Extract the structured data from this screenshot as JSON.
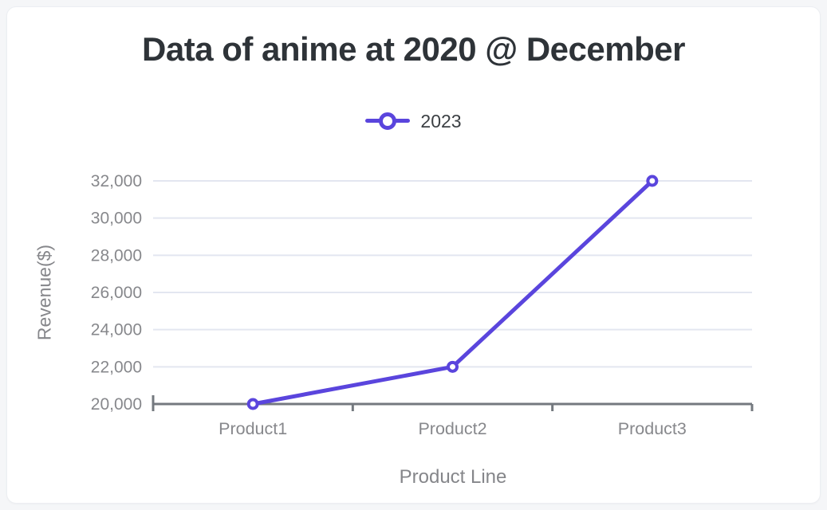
{
  "page": {
    "background": "#f5f6f8",
    "card_background": "#ffffff",
    "card_border": "#eceef2"
  },
  "chart_data": {
    "type": "line",
    "title": "Data of anime at 2020 @ December",
    "xlabel": "Product Line",
    "ylabel": "Revenue($)",
    "categories": [
      "Product1",
      "Product2",
      "Product3"
    ],
    "series": [
      {
        "name": "2023",
        "values": [
          20000,
          22000,
          32000
        ],
        "color": "#5a45dd"
      }
    ],
    "ylim": [
      20000,
      32000
    ],
    "yticks": [
      20000,
      22000,
      24000,
      26000,
      28000,
      30000,
      32000
    ],
    "ytick_labels": [
      "20,000",
      "22,000",
      "24,000",
      "26,000",
      "28,000",
      "30,000",
      "32,000"
    ],
    "grid": "horizontal",
    "legend_position": "top",
    "marker": "hollow-circle",
    "colors": {
      "grid": "#e3e6f0",
      "axis": "#74797f",
      "tick_label": "#87888c",
      "axis_title": "#85868a",
      "title": "#2e3338",
      "legend_text": "#3c4044"
    }
  }
}
